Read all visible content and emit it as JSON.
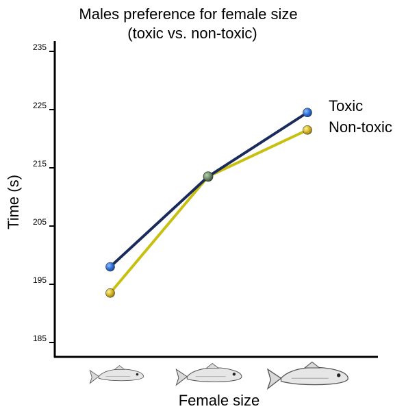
{
  "chart_data": {
    "type": "line",
    "title": "Males preference for female size",
    "subtitle": "(toxic vs. non-toxic)",
    "xlabel": "Female size",
    "ylabel": "Time (s)",
    "ylim": [
      182,
      237
    ],
    "yticks": [
      185,
      195,
      205,
      215,
      225,
      235
    ],
    "ytick_labels": [
      "185",
      "195",
      "205",
      "215",
      "225",
      "235"
    ],
    "categories": [
      "small",
      "medium",
      "large"
    ],
    "category_display": "fish-icons",
    "grid": false,
    "legend_position": "right",
    "series": [
      {
        "name": "Toxic",
        "values": [
          198,
          213.5,
          224.5
        ],
        "line_color": "#1a2a5a",
        "marker_color": "#2f6fd6"
      },
      {
        "name": "Non-toxic",
        "values": [
          193.5,
          213.5,
          221.5
        ],
        "line_color": "#c8c010",
        "marker_color": "#d4b420"
      }
    ]
  }
}
